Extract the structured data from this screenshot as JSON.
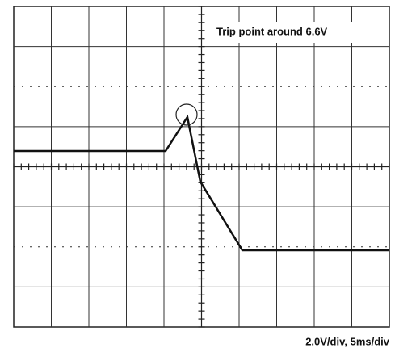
{
  "annotation": "Trip point around 6.6V",
  "scale_label": "2.0V/div, 5ms/div"
}
